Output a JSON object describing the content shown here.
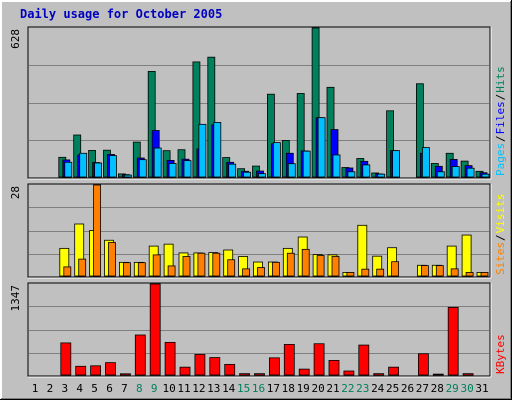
{
  "title": "Daily usage for October 2005",
  "colors": {
    "background": "#c0c0c0",
    "title": "#0000c0",
    "grid": "#808080",
    "hits": "#00805c",
    "files": "#0000ff",
    "pages": "#00c0ff",
    "visits": "#ffff00",
    "sites": "#ff8000",
    "kbytes": "#ff0000",
    "weekday_label": "#000000",
    "weekend_label": "#00805c"
  },
  "chart_data": [
    {
      "type": "bar",
      "name": "hits-files-pages",
      "ymax_label": "628",
      "ylim": [
        0,
        628
      ],
      "grid": true,
      "legend": [
        {
          "key": "pages",
          "text": "Pages"
        },
        {
          "key": "slash",
          "text": "/"
        },
        {
          "key": "files",
          "text": "Files"
        },
        {
          "key": "slash",
          "text": "/"
        },
        {
          "key": "hits",
          "text": "Hits"
        }
      ],
      "categories": [
        "1",
        "2",
        "3",
        "4",
        "5",
        "6",
        "7",
        "8",
        "9",
        "10",
        "11",
        "12",
        "13",
        "14",
        "15",
        "16",
        "17",
        "18",
        "19",
        "20",
        "21",
        "22",
        "23",
        "24",
        "25",
        "26",
        "27",
        "28",
        "29",
        "30",
        "31"
      ],
      "series": [
        {
          "key": "hits",
          "values": [
            0,
            0,
            83,
            177,
            112,
            113,
            13,
            147,
            445,
            111,
            115,
            485,
            505,
            82,
            35,
            46,
            349,
            154,
            352,
            628,
            378,
            40,
            78,
            17,
            279,
            0,
            393,
            57,
            100,
            67,
            24
          ]
        },
        {
          "key": "files",
          "values": [
            0,
            0,
            72,
            93,
            61,
            95,
            10,
            80,
            196,
            70,
            75,
            118,
            220,
            62,
            24,
            25,
            140,
            100,
            110,
            250,
            200,
            38,
            66,
            13,
            111,
            0,
            100,
            45,
            74,
            48,
            18
          ]
        },
        {
          "key": "pages",
          "values": [
            0,
            0,
            62,
            100,
            59,
            90,
            8,
            73,
            122,
            57,
            69,
            222,
            230,
            54,
            20,
            14,
            145,
            56,
            109,
            250,
            93,
            22,
            51,
            12,
            111,
            0,
            124,
            22,
            44,
            37,
            12
          ]
        }
      ]
    },
    {
      "type": "bar",
      "name": "visits-sites",
      "ymax_label": "28",
      "ylim": [
        0,
        28
      ],
      "grid": true,
      "legend": [
        {
          "key": "sites",
          "text": "Sites"
        },
        {
          "key": "slash",
          "text": "/"
        },
        {
          "key": "visits",
          "text": "Visits"
        }
      ],
      "categories": [
        "1",
        "2",
        "3",
        "4",
        "5",
        "6",
        "7",
        "8",
        "9",
        "10",
        "11",
        "12",
        "13",
        "14",
        "15",
        "16",
        "17",
        "18",
        "19",
        "20",
        "21",
        "22",
        "23",
        "24",
        "25",
        "26",
        "27",
        "28",
        "29",
        "30",
        "31"
      ],
      "series": [
        {
          "key": "visits",
          "values": [
            0,
            0,
            8.5,
            16,
            14,
            11,
            4.2,
            4.2,
            9.2,
            9.8,
            7.1,
            7.1,
            7.2,
            8,
            6,
            4.3,
            4.3,
            8.5,
            12,
            6.6,
            6.5,
            1.1,
            15.6,
            6.1,
            8.7,
            0,
            3.3,
            3.3,
            9.2,
            12.6,
            1.1
          ]
        },
        {
          "key": "sites",
          "values": [
            0,
            0,
            2.8,
            5.2,
            28,
            10.3,
            4.1,
            4.1,
            6.5,
            3.1,
            6,
            7,
            7,
            5,
            2.2,
            2.6,
            4.2,
            7,
            8.2,
            6.3,
            6,
            1.1,
            2.1,
            2.1,
            4.4,
            0,
            3.2,
            3.2,
            2.2,
            1.1,
            1.1
          ]
        }
      ]
    },
    {
      "type": "bar",
      "name": "kbytes",
      "ymax_label": "1347",
      "ylim": [
        0,
        1347
      ],
      "grid": true,
      "legend": [
        {
          "key": "kbytes",
          "text": "KBytes"
        }
      ],
      "categories": [
        "1",
        "2",
        "3",
        "4",
        "5",
        "6",
        "7",
        "8",
        "9",
        "10",
        "11",
        "12",
        "13",
        "14",
        "15",
        "16",
        "17",
        "18",
        "19",
        "20",
        "21",
        "22",
        "23",
        "24",
        "25",
        "26",
        "27",
        "28",
        "29",
        "30",
        "31"
      ],
      "series": [
        {
          "key": "kbytes",
          "values": [
            0,
            0,
            475,
            129,
            136,
            183,
            18,
            592,
            1347,
            483,
            116,
            304,
            258,
            157,
            20,
            20,
            254,
            453,
            87,
            463,
            216,
            59,
            443,
            20,
            116,
            0,
            314,
            13,
            1001,
            20,
            0
          ]
        }
      ]
    }
  ],
  "day_labels": [
    {
      "text": "1",
      "weekend": false
    },
    {
      "text": "2",
      "weekend": false
    },
    {
      "text": "3",
      "weekend": false
    },
    {
      "text": "4",
      "weekend": false
    },
    {
      "text": "5",
      "weekend": false
    },
    {
      "text": "6",
      "weekend": false
    },
    {
      "text": "7",
      "weekend": false
    },
    {
      "text": "8",
      "weekend": true
    },
    {
      "text": "9",
      "weekend": true
    },
    {
      "text": "10",
      "weekend": false
    },
    {
      "text": "11",
      "weekend": false
    },
    {
      "text": "12",
      "weekend": false
    },
    {
      "text": "13",
      "weekend": false
    },
    {
      "text": "14",
      "weekend": false
    },
    {
      "text": "15",
      "weekend": true
    },
    {
      "text": "16",
      "weekend": true
    },
    {
      "text": "17",
      "weekend": false
    },
    {
      "text": "18",
      "weekend": false
    },
    {
      "text": "19",
      "weekend": false
    },
    {
      "text": "20",
      "weekend": false
    },
    {
      "text": "21",
      "weekend": false
    },
    {
      "text": "22",
      "weekend": true
    },
    {
      "text": "23",
      "weekend": true
    },
    {
      "text": "24",
      "weekend": false
    },
    {
      "text": "25",
      "weekend": false
    },
    {
      "text": "26",
      "weekend": false
    },
    {
      "text": "27",
      "weekend": false
    },
    {
      "text": "28",
      "weekend": false
    },
    {
      "text": "29",
      "weekend": true
    },
    {
      "text": "30",
      "weekend": true
    },
    {
      "text": "31",
      "weekend": false
    }
  ]
}
